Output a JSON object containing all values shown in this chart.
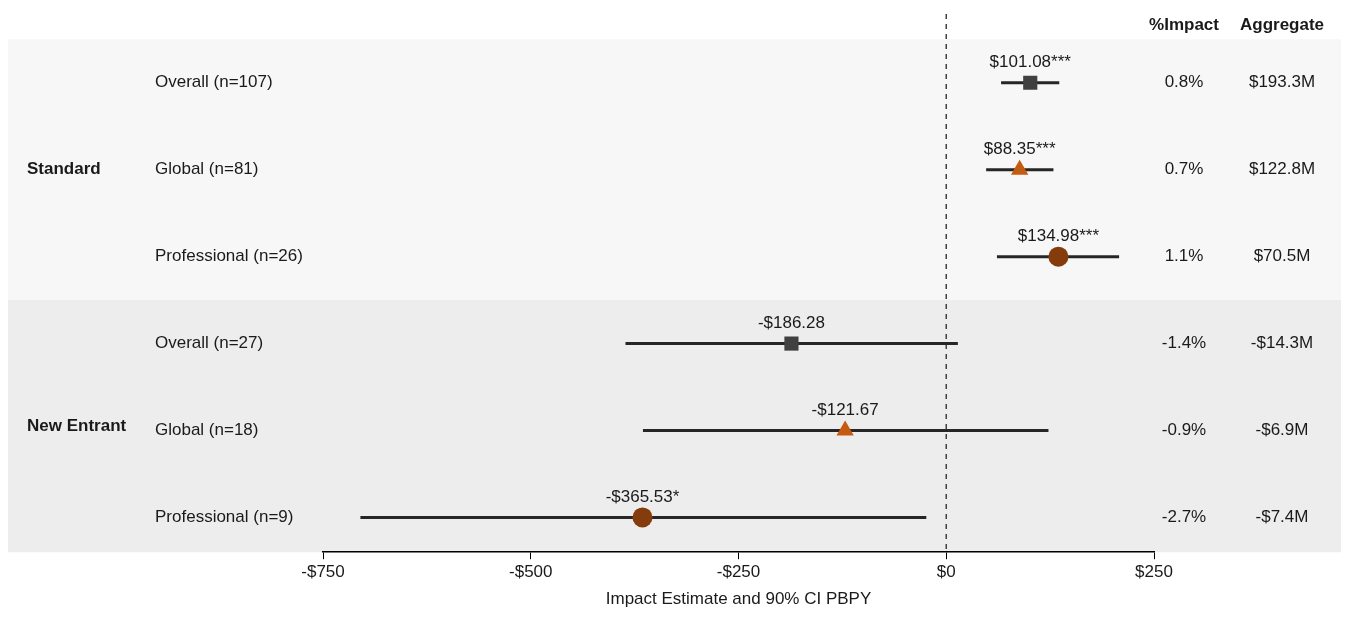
{
  "chart_data": {
    "type": "scatter",
    "orientation": "horizontal",
    "xlabel": "Impact Estimate and 90% CI PBPY",
    "categories": [
      "Overall (n=107)",
      "Global (n=81)",
      "Professional (n=26)",
      "Overall (n=27)",
      "Global (n=18)",
      "Professional (n=9)"
    ],
    "series": [
      {
        "color": "#404040",
        "marker": "square",
        "values": [
          101.08,
          null,
          null,
          -186.28,
          null,
          null
        ],
        "errors": [
          [
            66,
            136
          ],
          null,
          null,
          [
            -386,
            14
          ],
          null,
          null
        ],
        "value_labels": [
          "$101.08***",
          null,
          null,
          "-$186.28",
          null,
          null
        ]
      },
      {
        "color": "#c55a11",
        "marker": "triangle",
        "values": [
          null,
          88.35,
          null,
          null,
          -121.67,
          null
        ],
        "errors": [
          null,
          [
            48,
            129
          ],
          null,
          null,
          [
            -365,
            123
          ],
          null
        ],
        "value_labels": [
          null,
          "$88.35***",
          null,
          null,
          "-$121.67",
          null
        ]
      },
      {
        "color": "#843c0c",
        "marker": "circle",
        "values": [
          null,
          null,
          134.98,
          null,
          null,
          -365.53
        ],
        "errors": [
          null,
          null,
          [
            61,
            208
          ],
          null,
          null,
          [
            -705,
            -24
          ]
        ],
        "value_labels": [
          null,
          null,
          "$134.98***",
          null,
          null,
          "-$365.53*"
        ]
      }
    ],
    "xlim": [
      -750,
      250
    ],
    "xticks": [
      {
        "value": -750,
        "label": "-$750"
      },
      {
        "value": -500,
        "label": "-$500"
      },
      {
        "value": -250,
        "label": "-$250"
      },
      {
        "value": 0,
        "label": "$0"
      },
      {
        "value": 250,
        "label": "$250"
      }
    ],
    "ref_lines": [
      {
        "axis": "x",
        "value": 0,
        "line_style": "dashed",
        "color": "#404040"
      }
    ],
    "bands": [
      {
        "axis": "y",
        "from": "Overall (n=107)",
        "to": "Professional (n=26)",
        "label": "Standard",
        "color": "#f7f7f7"
      },
      {
        "axis": "y",
        "from": "Overall (n=27)",
        "to": "Professional (n=9)",
        "label": "New Entrant",
        "color": "#ededed"
      }
    ],
    "annotations": [
      "%Impact",
      "Aggregate",
      "0.8%",
      "$193.3M",
      "0.7%",
      "$122.8M",
      "1.1%",
      "$70.5M",
      "-1.4%",
      "-$14.3M",
      "-0.9%",
      "-$6.9M",
      "-2.7%",
      "-$7.4M"
    ],
    "grid": false,
    "legend": false
  }
}
